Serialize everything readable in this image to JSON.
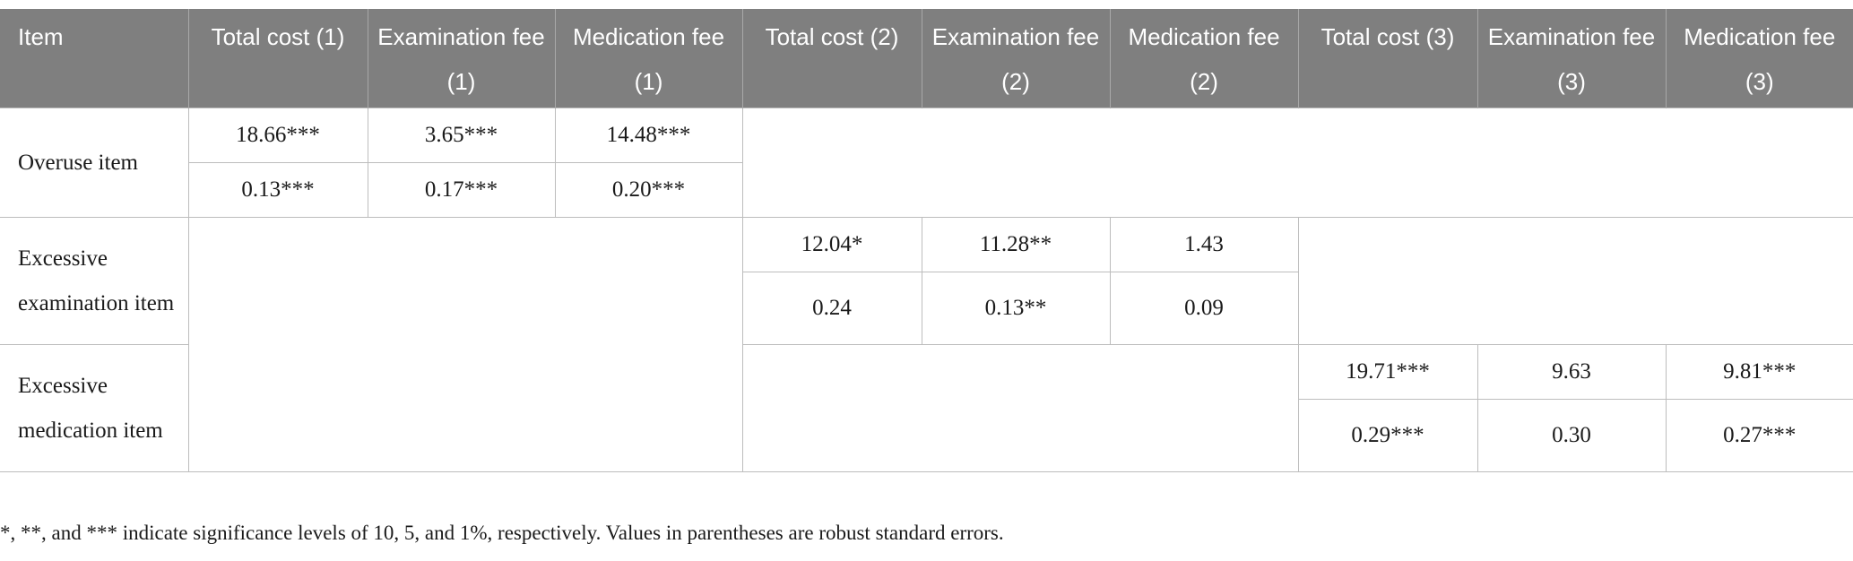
{
  "table": {
    "headers": [
      "Item",
      "Total cost (1)",
      "Examination fee (1)",
      "Medication fee (1)",
      "Total cost (2)",
      "Examination fee (2)",
      "Medication fee (2)",
      "Total cost (3)",
      "Examination fee (3)",
      "Medication fee (3)"
    ],
    "rows": [
      {
        "label": "Overuse item",
        "coef": [
          "18.66***",
          "3.65***",
          "14.48***"
        ],
        "se": [
          "0.13***",
          "0.17***",
          "0.20***"
        ]
      },
      {
        "label": "Excessive examination item",
        "coef": [
          "12.04*",
          "11.28**",
          "1.43"
        ],
        "se": [
          "0.24",
          "0.13**",
          "0.09"
        ]
      },
      {
        "label": "Excessive medication item",
        "coef": [
          "19.71***",
          "9.63",
          "9.81***"
        ],
        "se": [
          "0.29***",
          "0.30",
          "0.27***"
        ]
      }
    ]
  },
  "footnote": "*, **, and *** indicate significance levels of 10, 5, and 1%, respectively. Values in parentheses are robust standard errors."
}
